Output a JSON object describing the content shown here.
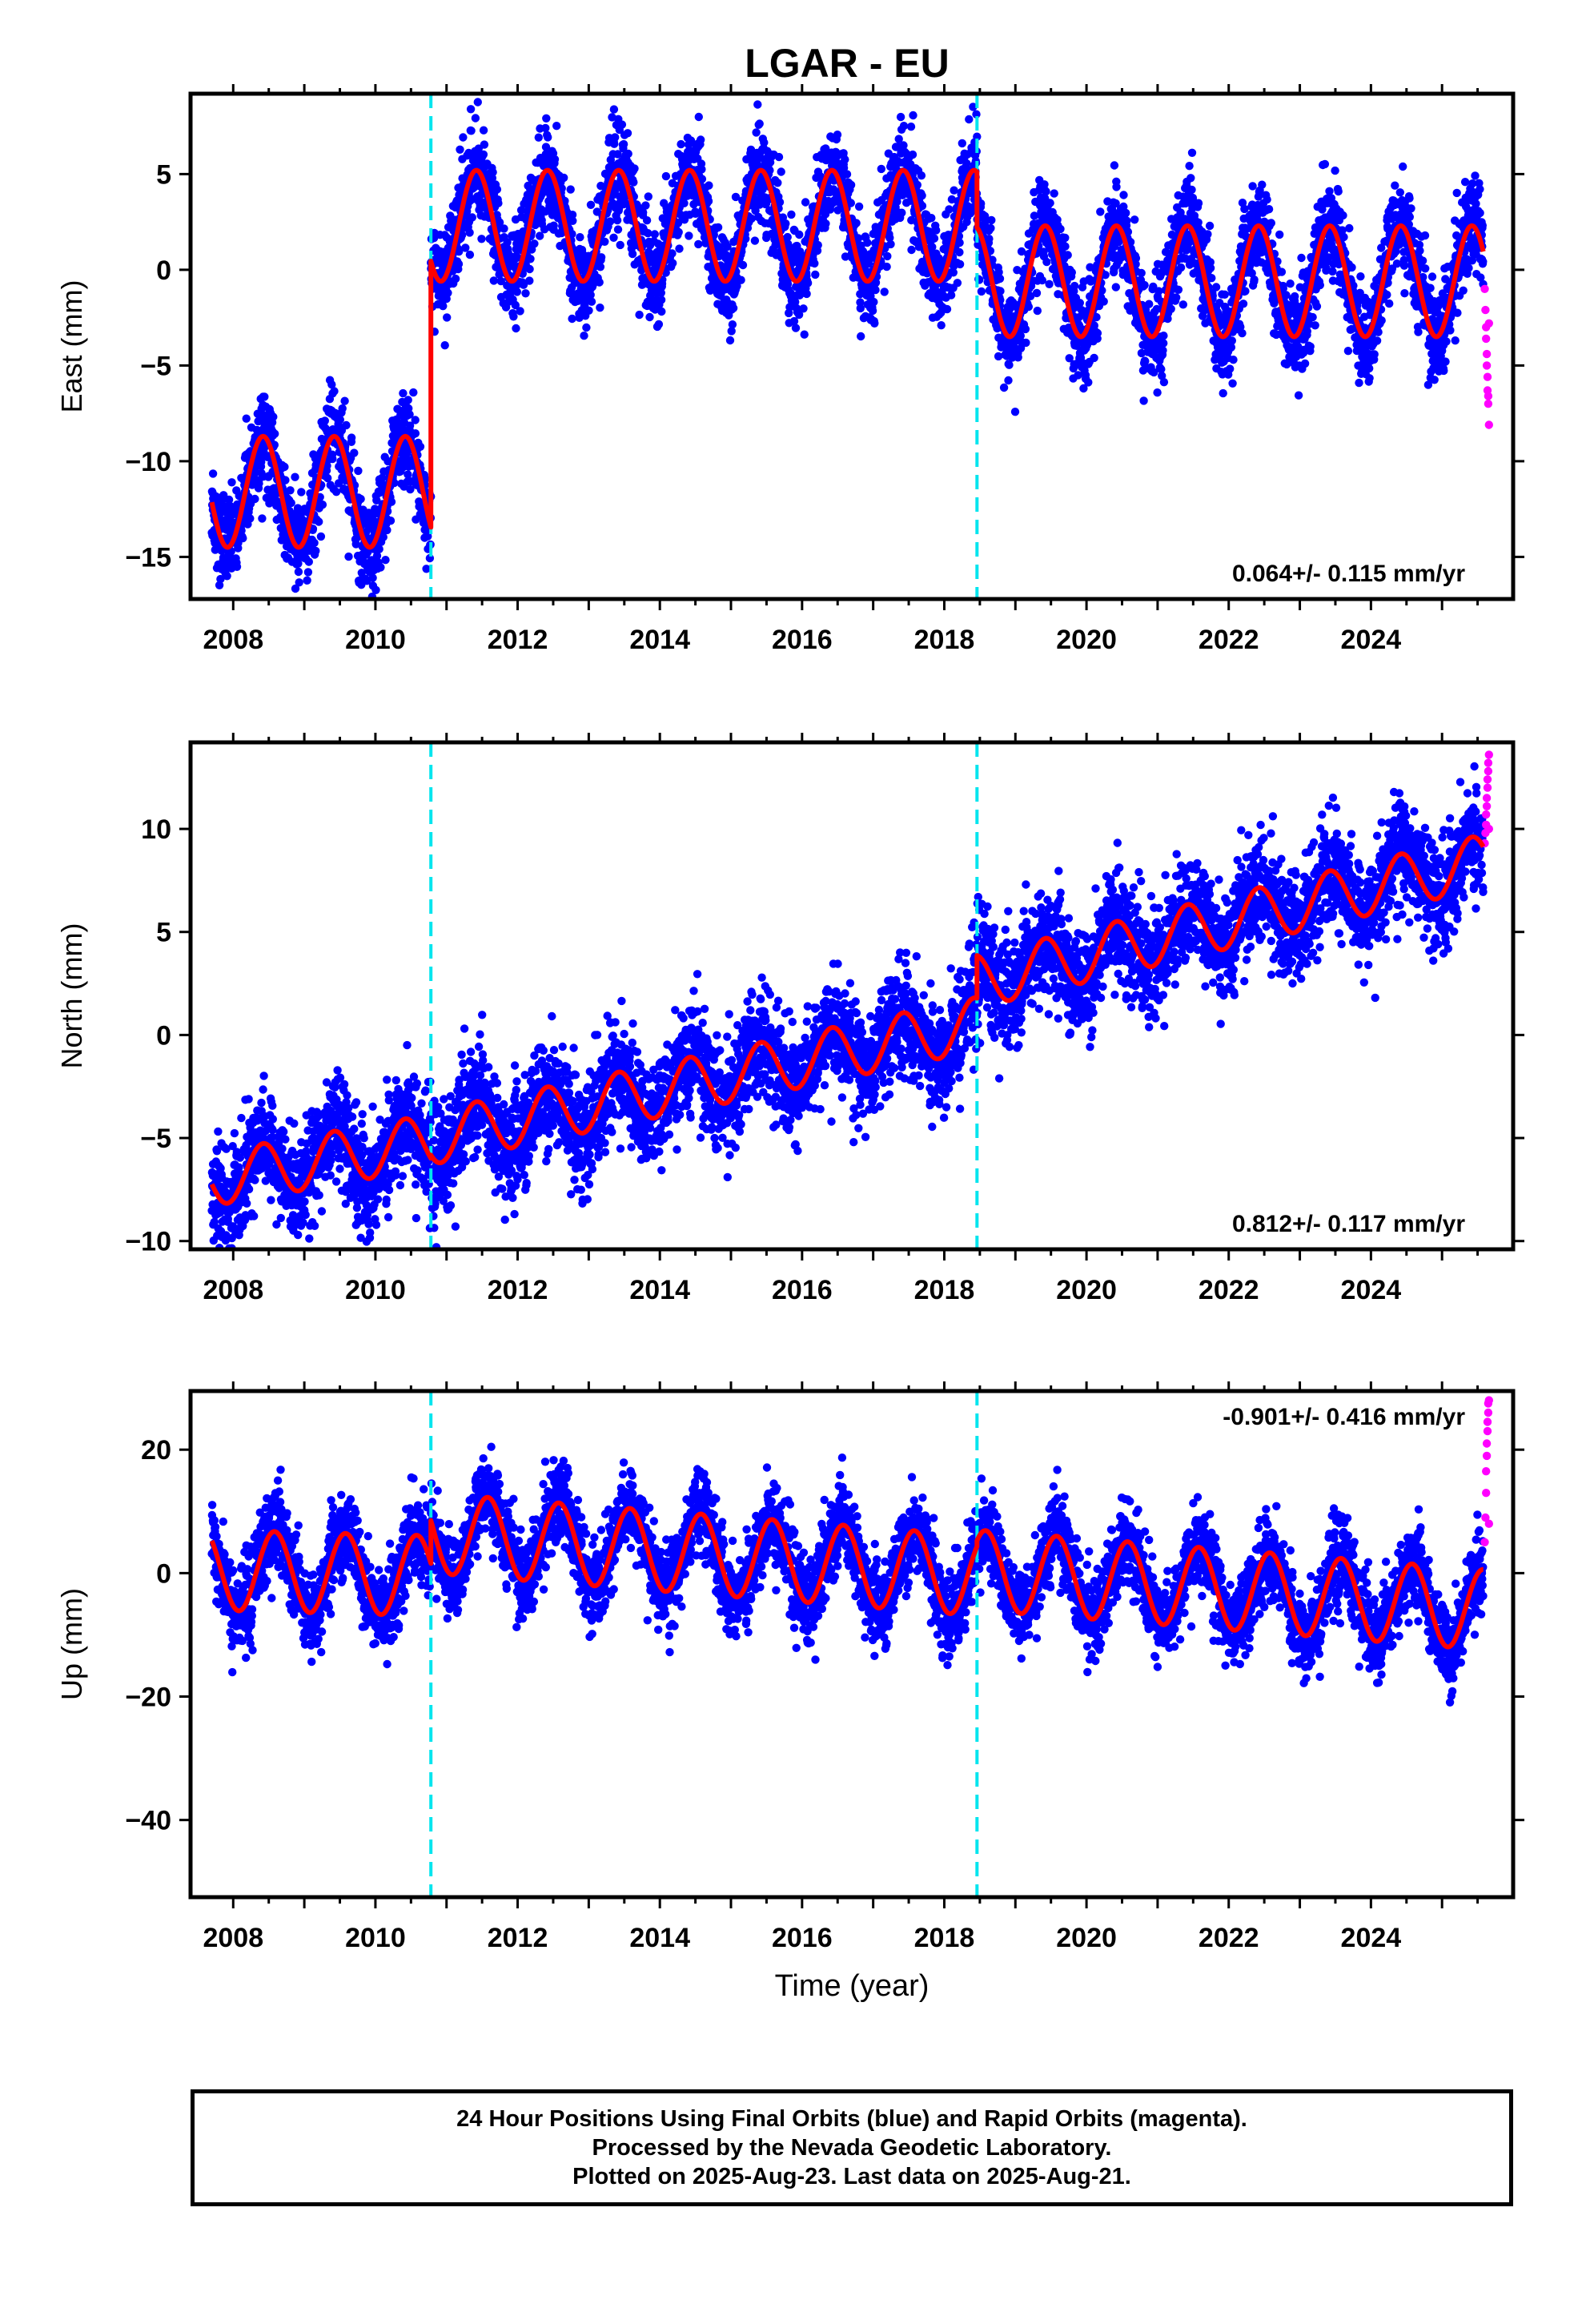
{
  "title": "LGAR - EU",
  "colors": {
    "final_orbits": "#0000ff",
    "rapid_orbits": "#ff00ff",
    "model_fit": "#ff0000",
    "event_lines": "#00e5ee",
    "frame": "#000000"
  },
  "event_lines_years": [
    2010.78,
    2018.46
  ],
  "chart_data": [
    {
      "type": "scatter",
      "title": "LGAR - EU",
      "xlabel": "",
      "ylabel": "East (mm)",
      "xlim": [
        2007.4,
        2026.0
      ],
      "ylim": [
        -17.2,
        9.2
      ],
      "yticks": [
        -15,
        -10,
        -5,
        0,
        5
      ],
      "xticks": [
        2008,
        2010,
        2012,
        2014,
        2016,
        2018,
        2020,
        2022,
        2024
      ],
      "rate_label": "0.064+/- 0.115 mm/yr",
      "rate_label_position": "bottom-right",
      "series": [
        {
          "role": "final-orbits",
          "segments": [
            {
              "start": 2007.7,
              "end": 2010.78,
              "offset": -11.6,
              "amplitude": 2.9,
              "scatter": 1.4
            },
            {
              "start": 2010.78,
              "end": 2018.46,
              "offset": 2.3,
              "amplitude": 2.9,
              "scatter": 1.4
            },
            {
              "start": 2018.46,
              "end": 2025.58,
              "offset": -0.6,
              "amplitude": 2.9,
              "scatter": 1.4
            }
          ]
        },
        {
          "role": "rapid-orbits",
          "x": [
            2025.6,
            2025.61,
            2025.62,
            2025.62,
            2025.63,
            2025.63,
            2025.64,
            2025.64,
            2025.65,
            2025.65,
            2025.66,
            2025.66
          ],
          "y": [
            -1.0,
            -2.1,
            -3.0,
            -3.6,
            -4.4,
            -5.0,
            -5.6,
            -6.3,
            -6.6,
            -7.0,
            -8.1,
            -2.8
          ]
        },
        {
          "role": "model-fit",
          "steps": [
            [
              2007.7,
              2010.78,
              -11.6
            ],
            [
              2010.78,
              2018.46,
              2.3
            ],
            [
              2018.46,
              2025.58,
              -0.6
            ]
          ],
          "amplitude": 2.9,
          "phase_peak": 0.42
        }
      ]
    },
    {
      "type": "scatter",
      "xlabel": "",
      "ylabel": "North (mm)",
      "xlim": [
        2007.4,
        2026.0
      ],
      "ylim": [
        -10.4,
        14.2
      ],
      "yticks": [
        -10,
        -5,
        0,
        5,
        10
      ],
      "xticks": [
        2008,
        2010,
        2012,
        2014,
        2016,
        2018,
        2020,
        2022,
        2024
      ],
      "rate_label": "0.812+/- 0.117 mm/yr",
      "rate_label_position": "bottom-right",
      "series": [
        {
          "role": "final-orbits",
          "segments": [
            {
              "start": 2007.7,
              "end": 2010.78,
              "y0": -7.0,
              "slope": 0.6,
              "amplitude": 1.3,
              "scatter": 1.5
            },
            {
              "start": 2010.78,
              "end": 2018.46,
              "y0": -5.0,
              "slope": 0.72,
              "amplitude": 1.3,
              "scatter": 1.5
            },
            {
              "start": 2018.46,
              "end": 2025.58,
              "y0": 2.6,
              "slope": 0.82,
              "amplitude": 1.3,
              "scatter": 1.5
            }
          ]
        },
        {
          "role": "rapid-orbits",
          "x": [
            2025.6,
            2025.61,
            2025.62,
            2025.62,
            2025.63,
            2025.63,
            2025.64,
            2025.64,
            2025.65,
            2025.65,
            2025.66,
            2025.66
          ],
          "y": [
            9.3,
            9.8,
            10.2,
            10.7,
            11.1,
            11.5,
            12.0,
            12.4,
            12.8,
            13.2,
            13.6,
            10.0
          ]
        },
        {
          "role": "model-fit",
          "steps": [
            [
              2007.7,
              2010.78,
              -7.0,
              0.6
            ],
            [
              2010.78,
              2018.46,
              -5.0,
              0.72
            ],
            [
              2018.46,
              2025.58,
              2.6,
              0.82
            ]
          ],
          "amplitude": 1.3,
          "phase_peak": 0.42
        }
      ]
    },
    {
      "type": "scatter",
      "xlabel": "Time (year)",
      "ylabel": "Up (mm)",
      "xlim": [
        2007.4,
        2026.0
      ],
      "ylim": [
        -52.5,
        29.5
      ],
      "yticks": [
        -40,
        -20,
        0,
        20
      ],
      "xticks": [
        2008,
        2010,
        2012,
        2014,
        2016,
        2018,
        2020,
        2022,
        2024
      ],
      "rate_label": "-0.901+/- 0.416 mm/yr",
      "rate_label_position": "top-right",
      "series": [
        {
          "role": "final-orbits",
          "segments": [
            {
              "start": 2007.7,
              "end": 2010.78,
              "y0": 0.5,
              "slope": -0.3,
              "amplitude": 6.5,
              "scatter": 3.8
            },
            {
              "start": 2010.78,
              "end": 2018.46,
              "y0": 6.5,
              "slope": -0.9,
              "amplitude": 6.5,
              "scatter": 3.8
            },
            {
              "start": 2018.46,
              "end": 2025.58,
              "y0": 0.5,
              "slope": -0.9,
              "amplitude": 6.5,
              "scatter": 3.8
            }
          ]
        },
        {
          "role": "rapid-orbits",
          "x": [
            2025.6,
            2025.61,
            2025.62,
            2025.62,
            2025.63,
            2025.63,
            2025.64,
            2025.64,
            2025.65,
            2025.65,
            2025.66,
            2025.66
          ],
          "y": [
            5.0,
            9.0,
            13.0,
            16.5,
            19.0,
            21.0,
            23.0,
            24.5,
            26.0,
            27.5,
            28.0,
            8.0
          ]
        },
        {
          "role": "model-fit",
          "steps": [
            [
              2007.7,
              2010.78,
              0.5,
              -0.3
            ],
            [
              2010.78,
              2018.46,
              6.5,
              -0.9
            ],
            [
              2018.46,
              2025.58,
              0.5,
              -0.9
            ]
          ],
          "amplitude": 6.5,
          "phase_peak": 0.58
        }
      ]
    }
  ],
  "footer": {
    "line1": "24 Hour Positions Using Final Orbits (blue) and Rapid Orbits (magenta).",
    "line2": "Processed by the Nevada Geodetic Laboratory.",
    "line3": "Plotted on 2025-Aug-23. Last data on 2025-Aug-21."
  }
}
